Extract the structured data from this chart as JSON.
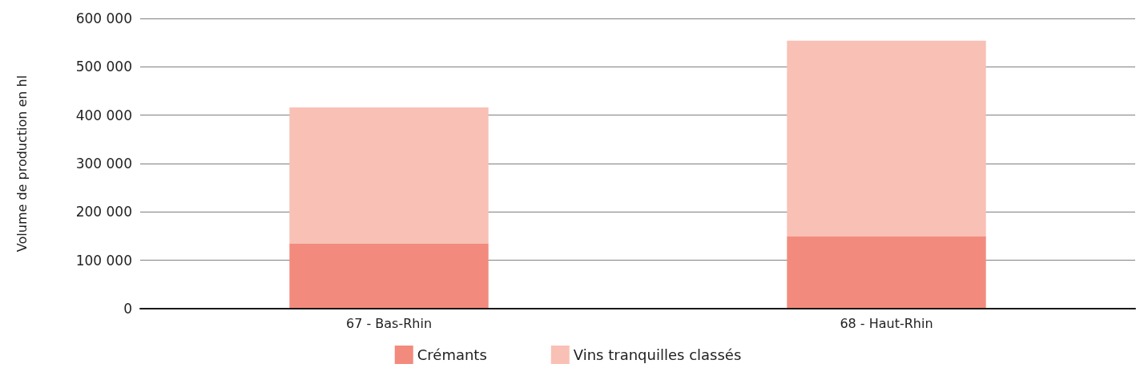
{
  "chart_data": {
    "type": "bar",
    "ylabel": "Volume de production en hl",
    "categories": [
      "67 - Bas-Rhin",
      "68 - Haut-Rhin"
    ],
    "stacked": true,
    "series": [
      {
        "name": "Crémants",
        "color": "#f28b7d",
        "values": [
          135000,
          149000
        ]
      },
      {
        "name": "Vins tranquilles classés",
        "color": "#f9c0b5",
        "values": [
          281000,
          405000
        ]
      }
    ],
    "ylim": [
      0,
      600000
    ],
    "yticks": [
      0,
      {
        "value": 100000,
        "label": "100 000"
      },
      {
        "value": 200000,
        "label": "200 000"
      },
      {
        "value": 300000,
        "label": "300 000"
      },
      {
        "value": 400000,
        "label": "400 000"
      },
      {
        "value": 500000,
        "label": "500 000"
      },
      {
        "value": 600000,
        "label": "600 000"
      }
    ],
    "grid": "y",
    "legend": "bottom"
  }
}
